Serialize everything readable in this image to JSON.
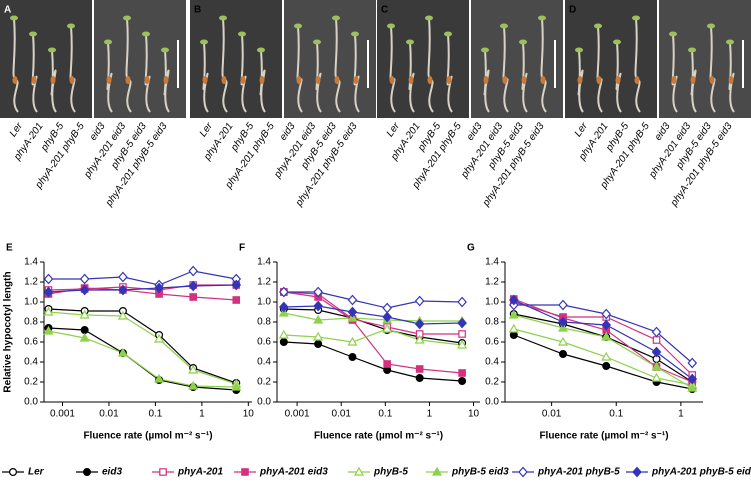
{
  "photo_panels": [
    {
      "label": "A",
      "genotypes": [
        "Ler",
        "phyA-201",
        "phyB-5",
        "phyA-201 phyB-5",
        "eid3",
        "phyA-201 eid3",
        "phyB-5 eid3",
        "phyA-201 phyB-5 eid3"
      ]
    },
    {
      "label": "B",
      "genotypes": [
        "Ler",
        "phyA-201",
        "phyB-5",
        "phyA-201 phyB-5",
        "eid3",
        "phyA-201 eid3",
        "phyB-5 eid3",
        "phyA-201 phyB-5 eid3"
      ]
    },
    {
      "label": "C",
      "genotypes": [
        "Ler",
        "phyA-201",
        "phyB-5",
        "phyA-201 phyB-5",
        "eid3",
        "phyA-201 eid3",
        "phyB-5 eid3",
        "phyA-201 phyB-5 eid3"
      ]
    },
    {
      "label": "D",
      "genotypes": [
        "Ler",
        "phyA-201",
        "phyB-5",
        "phyA-201 phyB-5",
        "eid3",
        "phyA-201 eid3",
        "phyB-5 eid3",
        "phyA-201 phyB-5 eid3"
      ]
    }
  ],
  "chart_data": [
    {
      "type": "line",
      "panel_label": "E",
      "y_label": "Relative hypocotyl length",
      "x_label": "Fluence rate (µmol m⁻² s⁻¹)",
      "log_x": true,
      "xlim": [
        0.0004,
        12
      ],
      "xticks": [
        0.001,
        0.01,
        0.1,
        1,
        10
      ],
      "ylim": [
        0,
        1.4
      ],
      "yticks": [
        {
          "value": 0,
          "label": "0.0"
        },
        0.2,
        0.4,
        0.6,
        0.8,
        {
          "value": 1,
          "label": "1.0"
        },
        1.2,
        1.4
      ],
      "x": [
        0.0005,
        0.003,
        0.02,
        0.12,
        0.65,
        5.5
      ],
      "series": [
        {
          "name": "Ler",
          "color": "#000000",
          "marker": "circle",
          "filled": false,
          "values": [
            0.93,
            0.91,
            0.91,
            0.67,
            0.34,
            0.19
          ]
        },
        {
          "name": "eid3",
          "color": "#000000",
          "marker": "circle",
          "filled": true,
          "values": [
            0.74,
            0.72,
            0.49,
            0.22,
            0.15,
            0.12
          ]
        },
        {
          "name": "phyA-201",
          "color": "#d4307f",
          "marker": "square",
          "filled": false,
          "values": [
            1.12,
            1.13,
            1.15,
            1.12,
            1.17,
            1.17
          ]
        },
        {
          "name": "phyA-201 eid3",
          "color": "#d4307f",
          "marker": "square",
          "filled": true,
          "values": [
            1.08,
            1.14,
            1.12,
            1.08,
            1.05,
            1.02
          ]
        },
        {
          "name": "phyB-5",
          "color": "#8ed14a",
          "marker": "triangle",
          "filled": false,
          "values": [
            0.9,
            0.87,
            0.86,
            0.63,
            0.32,
            0.18
          ]
        },
        {
          "name": "phyB-5 eid3",
          "color": "#8ed14a",
          "marker": "triangle",
          "filled": true,
          "values": [
            0.71,
            0.64,
            0.49,
            0.23,
            0.16,
            0.15
          ]
        },
        {
          "name": "phyA-201 phyB-5",
          "color": "#3434b8",
          "marker": "diamond",
          "filled": false,
          "values": [
            1.23,
            1.23,
            1.25,
            1.17,
            1.31,
            1.23
          ]
        },
        {
          "name": "phyA-201 phyB-5 eid3",
          "color": "#3434b8",
          "marker": "diamond",
          "filled": true,
          "values": [
            1.1,
            1.12,
            1.12,
            1.14,
            1.16,
            1.17
          ]
        }
      ]
    },
    {
      "type": "line",
      "panel_label": "F",
      "x_label": "Fluence rate (µmol m⁻² s⁻¹)",
      "log_x": true,
      "xlim": [
        0.00035,
        14
      ],
      "xticks": [
        0.001,
        0.01,
        0.1,
        1,
        10
      ],
      "ylim": [
        0,
        1.4
      ],
      "yticks": [
        {
          "value": 0,
          "label": "0.0"
        },
        0.2,
        0.4,
        0.6,
        0.8,
        {
          "value": 1,
          "label": "1.0"
        },
        1.2,
        1.4
      ],
      "x": [
        0.0005,
        0.003,
        0.018,
        0.11,
        0.6,
        5.5
      ],
      "series": [
        {
          "name": "Ler",
          "color": "#000000",
          "marker": "circle",
          "filled": false,
          "values": [
            0.93,
            0.92,
            0.84,
            0.72,
            0.65,
            0.59
          ]
        },
        {
          "name": "eid3",
          "color": "#000000",
          "marker": "circle",
          "filled": true,
          "values": [
            0.6,
            0.58,
            0.45,
            0.32,
            0.24,
            0.21
          ]
        },
        {
          "name": "phyA-201",
          "color": "#d4307f",
          "marker": "square",
          "filled": false,
          "values": [
            1.1,
            1.08,
            0.83,
            0.75,
            0.68,
            0.68
          ]
        },
        {
          "name": "phyA-201 eid3",
          "color": "#d4307f",
          "marker": "square",
          "filled": true,
          "values": [
            1.1,
            1.05,
            0.82,
            0.38,
            0.33,
            0.29
          ]
        },
        {
          "name": "phyB-5",
          "color": "#8ed14a",
          "marker": "triangle",
          "filled": false,
          "values": [
            0.67,
            0.65,
            0.6,
            0.73,
            0.62,
            0.57
          ]
        },
        {
          "name": "phyB-5 eid3",
          "color": "#8ed14a",
          "marker": "triangle",
          "filled": true,
          "values": [
            0.89,
            0.82,
            0.84,
            0.82,
            0.81,
            0.81
          ]
        },
        {
          "name": "phyA-201 phyB-5",
          "color": "#3434b8",
          "marker": "diamond",
          "filled": false,
          "values": [
            1.1,
            1.1,
            1.02,
            0.94,
            1.01,
            1.0
          ]
        },
        {
          "name": "phyA-201 phyB-5 eid3",
          "color": "#3434b8",
          "marker": "diamond",
          "filled": true,
          "values": [
            0.95,
            0.96,
            0.9,
            0.85,
            0.78,
            0.79
          ]
        }
      ]
    },
    {
      "type": "line",
      "panel_label": "G",
      "x_label": "Fluence rate (µmol m⁻² s⁻¹)",
      "log_x": true,
      "xlim": [
        0.0019,
        2.2
      ],
      "xticks": [
        0.01,
        0.1,
        1
      ],
      "ylim": [
        0,
        1.4
      ],
      "yticks": [
        {
          "value": 0,
          "label": "0.0"
        },
        0.2,
        0.4,
        0.6,
        0.8,
        {
          "value": 1,
          "label": "1.0"
        },
        1.2,
        1.4
      ],
      "x": [
        0.0026,
        0.015,
        0.07,
        0.42,
        1.5
      ],
      "series": [
        {
          "name": "Ler",
          "color": "#000000",
          "marker": "circle",
          "filled": false,
          "values": [
            0.88,
            0.78,
            0.65,
            0.43,
            0.2
          ]
        },
        {
          "name": "eid3",
          "color": "#000000",
          "marker": "circle",
          "filled": true,
          "values": [
            0.67,
            0.48,
            0.36,
            0.2,
            0.13
          ]
        },
        {
          "name": "phyA-201",
          "color": "#d4307f",
          "marker": "square",
          "filled": false,
          "values": [
            1.0,
            0.85,
            0.85,
            0.62,
            0.27
          ]
        },
        {
          "name": "phyA-201 eid3",
          "color": "#d4307f",
          "marker": "square",
          "filled": true,
          "values": [
            1.03,
            0.84,
            0.72,
            0.35,
            0.2
          ]
        },
        {
          "name": "phyB-5",
          "color": "#8ed14a",
          "marker": "triangle",
          "filled": false,
          "values": [
            0.73,
            0.6,
            0.45,
            0.24,
            0.17
          ]
        },
        {
          "name": "phyB-5 eid3",
          "color": "#8ed14a",
          "marker": "triangle",
          "filled": true,
          "values": [
            0.87,
            0.74,
            0.65,
            0.35,
            0.14
          ]
        },
        {
          "name": "phyA-201 phyB-5",
          "color": "#3434b8",
          "marker": "diamond",
          "filled": false,
          "values": [
            0.97,
            0.97,
            0.88,
            0.7,
            0.39
          ]
        },
        {
          "name": "phyA-201 phyB-5 eid3",
          "color": "#3434b8",
          "marker": "diamond",
          "filled": true,
          "values": [
            1.02,
            0.8,
            0.77,
            0.5,
            0.23
          ]
        }
      ]
    }
  ]
}
